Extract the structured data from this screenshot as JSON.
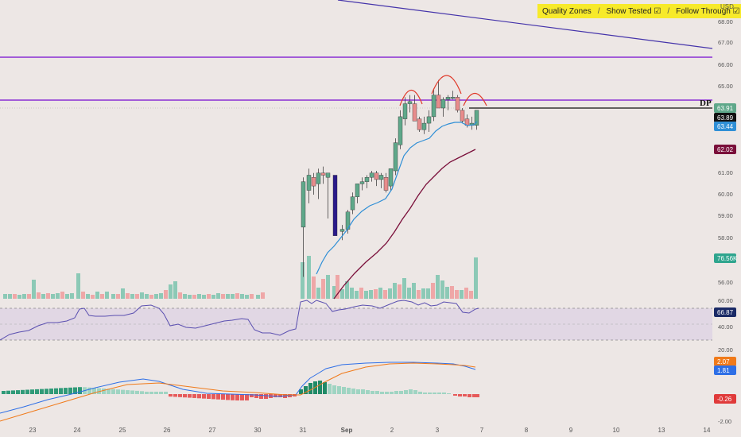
{
  "toolbar": {
    "quality_zones": "Quality Zones",
    "show_tested": "Show Tested ☑",
    "follow_through": "Follow Through ☑",
    "separator": "/"
  },
  "currency": "USD",
  "dp_label": "DP",
  "price_axis_ticks": [
    "68.00",
    "67.00",
    "66.00",
    "65.00",
    "64.00",
    "62.00",
    "61.00",
    "60.00",
    "59.00",
    "58.00",
    "57.00",
    "56.00"
  ],
  "rsi_axis_ticks": [
    "60.00",
    "40.00",
    "20.00"
  ],
  "macd_axis_ticks": [
    "-2.00"
  ],
  "price_badges": [
    {
      "label": "63.91",
      "value": 63.91,
      "bg": "#5fa88a",
      "fg": "#ffffff"
    },
    {
      "label": "63.89",
      "value": 63.89,
      "bg": "#111111",
      "fg": "#ffffff"
    },
    {
      "label": "63.44",
      "value": 63.44,
      "bg": "#2f8fd6",
      "fg": "#ffffff"
    },
    {
      "label": "62.02",
      "value": 62.02,
      "bg": "#7a0f3a",
      "fg": "#ffffff"
    }
  ],
  "volume_badge": {
    "label": "76.56K",
    "bg": "#2fa58e",
    "fg": "#ffffff"
  },
  "rsi_badge": {
    "label": "66.87",
    "value": 66.87,
    "bg": "#1a2a66",
    "fg": "#ffffff"
  },
  "macd_badges": [
    {
      "label": "2.07",
      "value": 2.07,
      "bg": "#f07a1a",
      "fg": "#ffffff"
    },
    {
      "label": "1.81",
      "value": 1.81,
      "bg": "#2e6fe6",
      "fg": "#ffffff"
    },
    {
      "label": "-0.26",
      "value": -0.26,
      "bg": "#e03a3a",
      "fg": "#ffffff"
    }
  ],
  "time_axis": [
    "23",
    "24",
    "25",
    "26",
    "27",
    "30",
    "31",
    "Sep",
    "2",
    "3",
    "4",
    "5",
    "6",
    "7",
    "8",
    "9",
    "10",
    "13",
    "14"
  ],
  "colors": {
    "background": "#ede7e5",
    "bull": "#5fa88a",
    "bear": "#e88c8c",
    "zone_line": "#8a2fd4",
    "trend_line": "#4433aa",
    "ema_fast": "#2f8fd6",
    "ema_slow": "#7a0f3a",
    "head_shoulder": "#e03a2a",
    "rsi_band": "#ddd3e3",
    "rsi_line": "#5a4fb0",
    "macd_line": "#2e6fe6",
    "signal_line": "#f07a1a"
  }
}
